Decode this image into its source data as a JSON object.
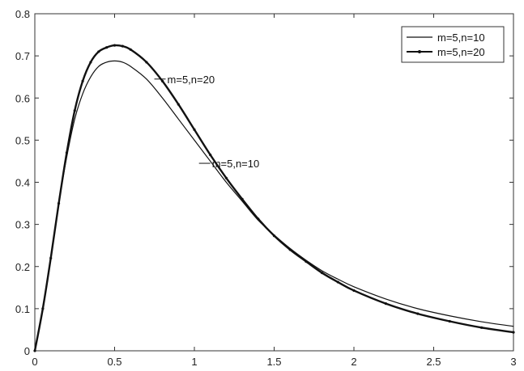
{
  "chart_data": {
    "type": "line",
    "title": "",
    "xlabel": "",
    "ylabel": "",
    "xlim": [
      0,
      3
    ],
    "ylim": [
      0,
      0.8
    ],
    "x_ticks": [
      "0",
      "0.5",
      "1",
      "1.5",
      "2",
      "2.5",
      "3"
    ],
    "y_ticks": [
      "0",
      "0.1",
      "0.2",
      "0.3",
      "0.4",
      "0.5",
      "0.6",
      "0.7",
      "0.8"
    ],
    "grid": false,
    "legend_position": "top-right",
    "series": [
      {
        "name": "m=5,n=10",
        "color": "#111111",
        "marker": "none",
        "x": [
          0,
          0.05,
          0.1,
          0.15,
          0.2,
          0.25,
          0.3,
          0.35,
          0.4,
          0.45,
          0.5,
          0.55,
          0.6,
          0.7,
          0.8,
          0.9,
          1.0,
          1.1,
          1.2,
          1.3,
          1.4,
          1.5,
          1.6,
          1.7,
          1.8,
          1.9,
          2.0,
          2.2,
          2.4,
          2.6,
          2.8,
          3.0
        ],
        "values": [
          0,
          0.1,
          0.22,
          0.35,
          0.46,
          0.55,
          0.61,
          0.65,
          0.675,
          0.685,
          0.688,
          0.685,
          0.675,
          0.645,
          0.6,
          0.55,
          0.5,
          0.45,
          0.4,
          0.355,
          0.31,
          0.275,
          0.243,
          0.215,
          0.19,
          0.17,
          0.152,
          0.123,
          0.1,
          0.083,
          0.069,
          0.058
        ]
      },
      {
        "name": "m=5,n=20",
        "color": "#111111",
        "marker": "dot",
        "x": [
          0,
          0.05,
          0.1,
          0.15,
          0.2,
          0.25,
          0.3,
          0.35,
          0.4,
          0.45,
          0.5,
          0.55,
          0.6,
          0.7,
          0.8,
          0.9,
          1.0,
          1.1,
          1.2,
          1.3,
          1.4,
          1.5,
          1.6,
          1.7,
          1.8,
          1.9,
          2.0,
          2.2,
          2.4,
          2.6,
          2.8,
          3.0
        ],
        "values": [
          0,
          0.1,
          0.22,
          0.35,
          0.47,
          0.57,
          0.64,
          0.685,
          0.71,
          0.72,
          0.725,
          0.723,
          0.715,
          0.685,
          0.64,
          0.585,
          0.525,
          0.465,
          0.41,
          0.36,
          0.313,
          0.273,
          0.24,
          0.212,
          0.185,
          0.163,
          0.143,
          0.112,
          0.088,
          0.07,
          0.055,
          0.044
        ]
      }
    ],
    "annotations": [
      {
        "text": "m=5,n=20",
        "x": 0.82,
        "y": 0.645
      },
      {
        "text": "m=5,n=10",
        "x": 1.1,
        "y": 0.445
      }
    ]
  }
}
